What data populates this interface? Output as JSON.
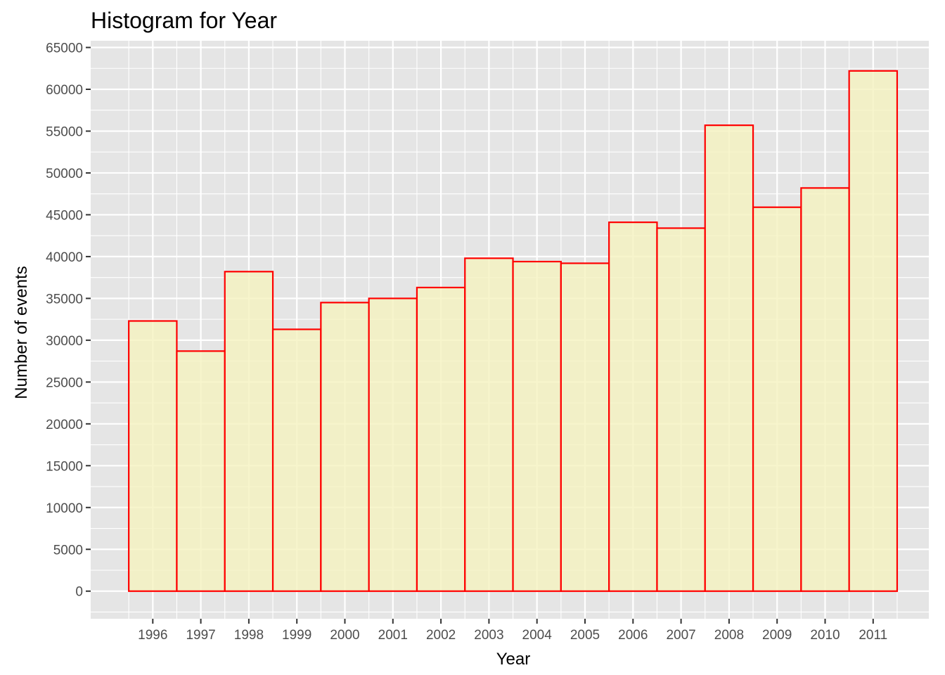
{
  "chart_data": {
    "type": "bar",
    "title": "Histogram for Year",
    "xlabel": "Year",
    "ylabel": "Number of events",
    "categories": [
      "1996",
      "1997",
      "1998",
      "1999",
      "2000",
      "2001",
      "2002",
      "2003",
      "2004",
      "2005",
      "2006",
      "2007",
      "2008",
      "2009",
      "2010",
      "2011"
    ],
    "values": [
      32300,
      28700,
      38200,
      31300,
      34500,
      35000,
      36300,
      39800,
      39400,
      39200,
      44100,
      43400,
      55700,
      45900,
      48200,
      62200
    ],
    "ylim": [
      -3300,
      65800
    ],
    "yticks": [
      "0",
      "5000",
      "10000",
      "15000",
      "20000",
      "25000",
      "30000",
      "35000",
      "40000",
      "45000",
      "50000",
      "55000",
      "60000",
      "65000"
    ],
    "grid": true,
    "legend": "none",
    "colors": {
      "panel_background": "#e5e5e5",
      "grid_line": "#ffffff",
      "bar_fill": "#f5f2bf",
      "bar_fill_opacity": "0.8",
      "bar_outline": "#ff0000"
    }
  }
}
